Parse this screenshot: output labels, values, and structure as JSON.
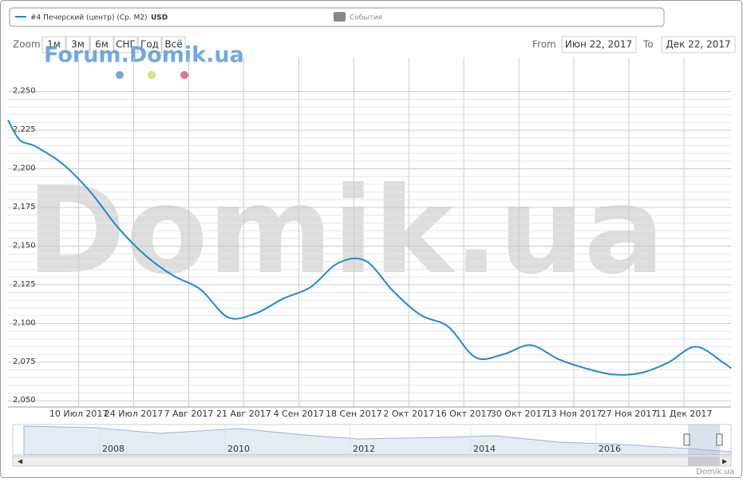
{
  "legend": {
    "series_label": "#4 Печерский (центр) (Ср. M2)",
    "currency": "USD",
    "events": "События"
  },
  "range_selector": {
    "zoom_label": "Zoom",
    "buttons": [
      "1м",
      "3м",
      "6м",
      "СНГ",
      "Год",
      "Всё"
    ],
    "from_label": "From",
    "from": "Июн 22, 2017",
    "to_label": "To",
    "to": "Дек 22, 2017"
  },
  "watermark": {
    "forum": "Forum.Domik.ua",
    "main": "Domik.ua"
  },
  "chart_data": {
    "type": "line",
    "x": [
      "2017-06-22",
      "2017-06-25",
      "2017-06-29",
      "2017-07-06",
      "2017-07-13",
      "2017-07-20",
      "2017-07-27",
      "2017-08-03",
      "2017-08-10",
      "2017-08-17",
      "2017-08-24",
      "2017-08-31",
      "2017-09-07",
      "2017-09-14",
      "2017-09-21",
      "2017-09-28",
      "2017-10-05",
      "2017-10-12",
      "2017-10-19",
      "2017-10-26",
      "2017-11-02",
      "2017-11-09",
      "2017-11-16",
      "2017-11-23",
      "2017-11-30",
      "2017-12-07",
      "2017-12-14",
      "2017-12-21",
      "2017-12-23"
    ],
    "series": [
      {
        "name": "#4 Печерский (центр) (Ср. M2) USD",
        "color": "#1f8ac9",
        "values": [
          2231.5,
          2218.6,
          2214.5,
          2203,
          2185,
          2162,
          2144,
          2131,
          2122,
          2104,
          2106.5,
          2116,
          2123.5,
          2139,
          2140.5,
          2121,
          2105.5,
          2098,
          2078,
          2080,
          2086,
          2077,
          2071,
          2067,
          2068,
          2074.7,
          2085,
          2074.7,
          2071
        ]
      }
    ],
    "xlim": [
      "2017-06-22",
      "2017-12-23"
    ],
    "xticks": [
      {
        "value": "2017-07-10",
        "label": "10 Июл 2017"
      },
      {
        "value": "2017-07-24",
        "label": "24 Июл 2017"
      },
      {
        "value": "2017-08-07",
        "label": "7 Авг 2017"
      },
      {
        "value": "2017-08-21",
        "label": "21 Авг 2017"
      },
      {
        "value": "2017-09-04",
        "label": "4 Сен 2017"
      },
      {
        "value": "2017-09-18",
        "label": "18 Сен 2017"
      },
      {
        "value": "2017-10-02",
        "label": "2 Окт 2017"
      },
      {
        "value": "2017-10-16",
        "label": "16 Окт 2017"
      },
      {
        "value": "2017-10-30",
        "label": "30 Окт 2017"
      },
      {
        "value": "2017-11-13",
        "label": "13 Ноя 2017"
      },
      {
        "value": "2017-11-27",
        "label": "27 Ноя 2017"
      },
      {
        "value": "2017-12-11",
        "label": "11 Дек 2017"
      }
    ],
    "ylim": [
      2046,
      2272
    ],
    "yticks": [
      {
        "value": 2050,
        "label": "2,050"
      },
      {
        "value": 2075,
        "label": "2,075"
      },
      {
        "value": 2100,
        "label": "2,100"
      },
      {
        "value": 2125,
        "label": "2,125"
      },
      {
        "value": 2150,
        "label": "2,150"
      },
      {
        "value": 2175,
        "label": "2,175"
      },
      {
        "value": 2200,
        "label": "2,200"
      },
      {
        "value": 2225,
        "label": "2,225"
      },
      {
        "value": 2250,
        "label": "2,250"
      }
    ],
    "grid": true,
    "navigator": {
      "years": [
        "2008",
        "2010",
        "2012",
        "2014",
        "2016"
      ]
    }
  },
  "credit": "Domik.ua"
}
